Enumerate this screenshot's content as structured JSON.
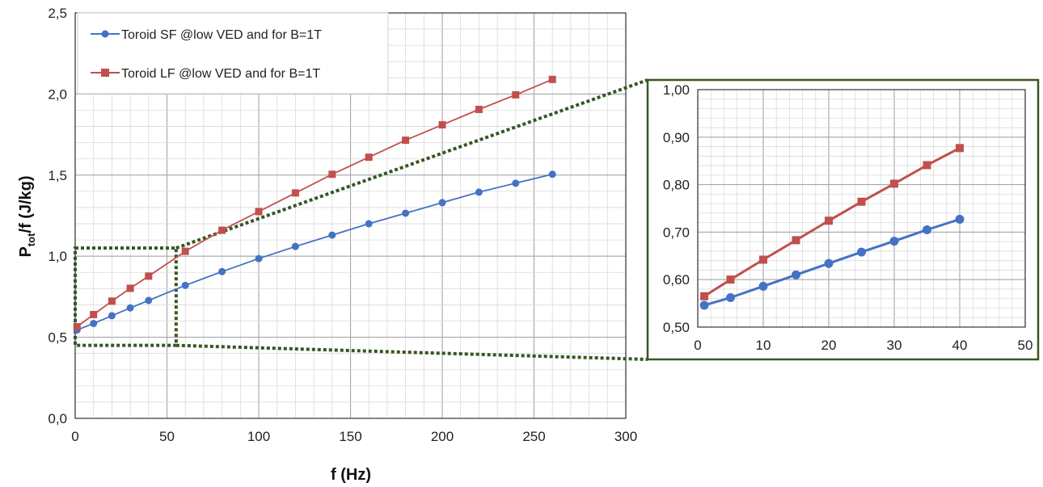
{
  "chart_data": [
    {
      "type": "line",
      "xlabel": "f (Hz)",
      "ylabel": {
        "main": "P",
        "sub": "tot",
        "rest": "/f   (J/kg)"
      },
      "xlim": [
        0,
        300
      ],
      "ylim": [
        0,
        2.5
      ],
      "x_ticks": [
        "0",
        "50",
        "100",
        "150",
        "200",
        "250",
        "300"
      ],
      "y_ticks": [
        "0,0",
        "0,5",
        "1,0",
        "1,5",
        "2,0",
        "2,5"
      ],
      "grid": "major and minor",
      "legend_position": "top-left",
      "series": [
        {
          "name": "Toroid SF @low VED and for B=1T",
          "color": "#4472C4",
          "marker": "circle",
          "x": [
            1,
            10,
            20,
            30,
            40,
            60,
            80,
            100,
            120,
            140,
            160,
            180,
            200,
            220,
            240,
            260
          ],
          "y": [
            0.545,
            0.585,
            0.633,
            0.681,
            0.727,
            0.82,
            0.905,
            0.985,
            1.06,
            1.13,
            1.2,
            1.265,
            1.33,
            1.395,
            1.45,
            1.505
          ]
        },
        {
          "name": "Toroid LF @low VED and for B=1T",
          "color": "#C0504D",
          "marker": "square",
          "x": [
            1,
            10,
            20,
            30,
            40,
            60,
            80,
            100,
            120,
            140,
            160,
            180,
            200,
            220,
            240,
            260
          ],
          "y": [
            0.565,
            0.64,
            0.723,
            0.802,
            0.877,
            1.03,
            1.16,
            1.275,
            1.39,
            1.505,
            1.61,
            1.715,
            1.81,
            1.905,
            1.995,
            2.09
          ]
        }
      ]
    },
    {
      "type": "line",
      "xlim": [
        0,
        50
      ],
      "ylim": [
        0.5,
        1.0
      ],
      "x_ticks": [
        "0",
        "10",
        "20",
        "30",
        "40",
        "50"
      ],
      "y_ticks": [
        "0,50",
        "0,60",
        "0,70",
        "0,80",
        "0,90",
        "1,00"
      ],
      "grid": "major and minor",
      "series": [
        {
          "color": "#4472C4",
          "marker": "circle",
          "x": [
            1,
            5,
            10,
            15,
            20,
            25,
            30,
            35,
            40
          ],
          "y": [
            0.546,
            0.562,
            0.586,
            0.61,
            0.634,
            0.658,
            0.681,
            0.705,
            0.727
          ]
        },
        {
          "color": "#C0504D",
          "marker": "square",
          "x": [
            1,
            5,
            10,
            15,
            20,
            25,
            30,
            35,
            40
          ],
          "y": [
            0.565,
            0.6,
            0.642,
            0.683,
            0.724,
            0.764,
            0.802,
            0.841,
            0.877
          ]
        }
      ]
    }
  ],
  "zoom_box": {
    "x": [
      0,
      55
    ],
    "y": [
      0.45,
      1.05
    ]
  },
  "colors": {
    "zoom_outline": "#375623",
    "grid": "#bdbdbd",
    "axis": "#333333"
  }
}
